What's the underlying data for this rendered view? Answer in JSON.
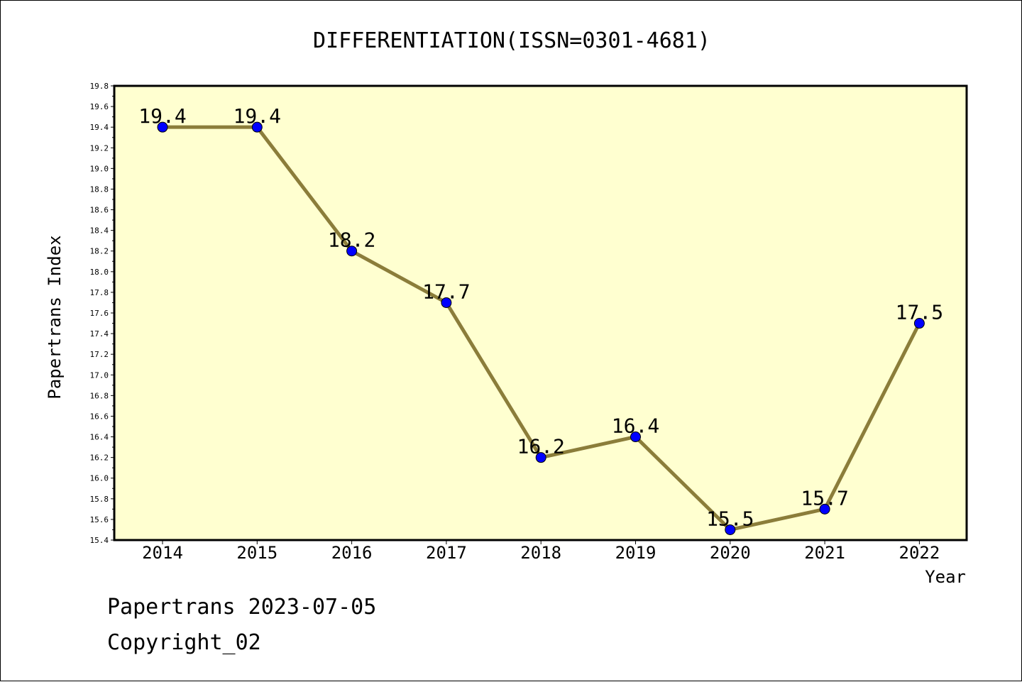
{
  "chart_data": {
    "type": "line",
    "title": "DIFFERENTIATION(ISSN=0301-4681)",
    "xlabel": "Year",
    "ylabel": "Papertrans Index",
    "categories": [
      "2014",
      "2015",
      "2016",
      "2017",
      "2018",
      "2019",
      "2020",
      "2021",
      "2022"
    ],
    "series": [
      {
        "values": [
          19.4,
          19.4,
          18.2,
          17.7,
          16.2,
          16.4,
          15.5,
          15.7,
          17.5
        ],
        "labels": [
          "19.4",
          "19.4",
          "18.2",
          "17.7",
          "16.2",
          "16.4",
          "15.5",
          "15.7",
          "17.5"
        ]
      }
    ],
    "ylim": [
      15.4,
      19.8
    ],
    "yticks": [
      "15.4",
      "15.6",
      "15.8",
      "16.0",
      "16.2",
      "16.4",
      "16.6",
      "16.8",
      "17.0",
      "17.2",
      "17.4",
      "17.6",
      "17.8",
      "18.0",
      "18.2",
      "18.4",
      "18.6",
      "18.8",
      "19.0",
      "19.2",
      "19.4",
      "19.6",
      "19.8"
    ],
    "grid": false,
    "colors": {
      "plot_background": "#ffffd0",
      "line": "#8b7d3a",
      "marker": "#0000ff"
    }
  },
  "footer": {
    "line1": "Papertrans 2023-07-05",
    "line2": "Copyright_02"
  }
}
